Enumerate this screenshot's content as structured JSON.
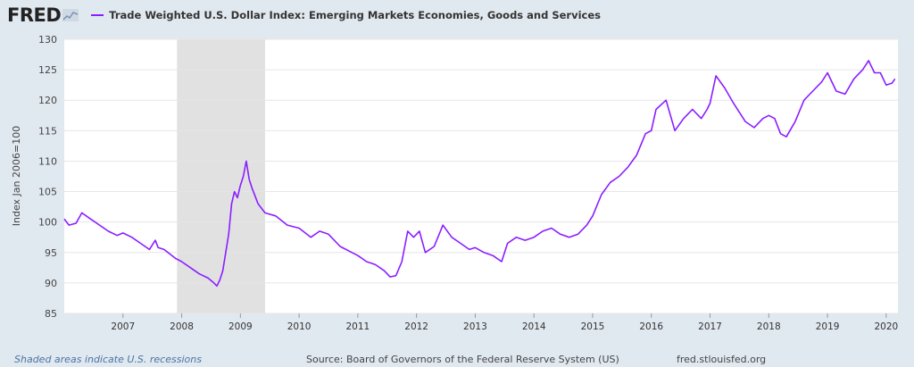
{
  "header": {
    "logo_text": "FRED",
    "logo_icon": "line-chart-icon"
  },
  "colors": {
    "series": "#8b1eff",
    "recession": "#e1e1e1",
    "plot_bg": "#ffffff",
    "page_bg": "#e1e9f0",
    "grid": "#e6e6e6"
  },
  "footer": {
    "recession_note": "Shaded areas indicate U.S. recessions",
    "source": "Source: Board of Governors of the Federal Reserve System (US)",
    "site": "fred.stlouisfed.org"
  },
  "chart_data": {
    "type": "line",
    "title": "",
    "ylabel": "Index Jan 2006=100",
    "xlabel": "",
    "ylim": [
      85,
      130
    ],
    "xlim": [
      2006.0,
      2020.2
    ],
    "yticks": [
      "85",
      "90",
      "95",
      "100",
      "105",
      "110",
      "115",
      "120",
      "125",
      "130"
    ],
    "xticks": [
      "2007",
      "2008",
      "2009",
      "2010",
      "2011",
      "2012",
      "2013",
      "2014",
      "2015",
      "2016",
      "2017",
      "2018",
      "2019",
      "2020"
    ],
    "grid": "horizontal",
    "recessions": [
      [
        2007.92,
        2009.42
      ]
    ],
    "series": [
      {
        "name": "Trade Weighted U.S. Dollar Index: Emerging Markets Economies, Goods and Services",
        "x": [
          2006.0,
          2006.08,
          2006.2,
          2006.3,
          2006.45,
          2006.6,
          2006.75,
          2006.9,
          2007.0,
          2007.15,
          2007.3,
          2007.45,
          2007.55,
          2007.6,
          2007.7,
          2007.9,
          2008.0,
          2008.15,
          2008.3,
          2008.45,
          2008.55,
          2008.6,
          2008.65,
          2008.7,
          2008.75,
          2008.8,
          2008.85,
          2008.9,
          2008.95,
          2009.0,
          2009.05,
          2009.1,
          2009.15,
          2009.2,
          2009.3,
          2009.42,
          2009.6,
          2009.8,
          2010.0,
          2010.2,
          2010.35,
          2010.5,
          2010.7,
          2010.9,
          2011.0,
          2011.15,
          2011.3,
          2011.45,
          2011.55,
          2011.65,
          2011.75,
          2011.85,
          2011.95,
          2012.05,
          2012.15,
          2012.3,
          2012.45,
          2012.6,
          2012.75,
          2012.9,
          2013.0,
          2013.15,
          2013.3,
          2013.45,
          2013.55,
          2013.7,
          2013.85,
          2014.0,
          2014.15,
          2014.3,
          2014.45,
          2014.6,
          2014.75,
          2014.9,
          2015.0,
          2015.15,
          2015.3,
          2015.45,
          2015.6,
          2015.75,
          2015.9,
          2016.0,
          2016.08,
          2016.25,
          2016.4,
          2016.55,
          2016.7,
          2016.85,
          2016.95,
          2017.0,
          2017.1,
          2017.25,
          2017.4,
          2017.6,
          2017.75,
          2017.9,
          2018.0,
          2018.1,
          2018.2,
          2018.3,
          2018.45,
          2018.6,
          2018.75,
          2018.9,
          2019.0,
          2019.15,
          2019.3,
          2019.45,
          2019.6,
          2019.7,
          2019.8,
          2019.9,
          2020.0,
          2020.1,
          2020.15
        ],
        "y": [
          100.5,
          99.5,
          99.8,
          101.5,
          100.5,
          99.5,
          98.5,
          97.8,
          98.2,
          97.5,
          96.5,
          95.5,
          97.0,
          95.8,
          95.5,
          94.0,
          93.5,
          92.5,
          91.5,
          90.8,
          90.0,
          89.5,
          90.5,
          92.0,
          95.0,
          98.0,
          103.0,
          105.0,
          104.0,
          106.0,
          107.5,
          110.0,
          107.0,
          105.5,
          103.0,
          101.5,
          101.0,
          99.5,
          99.0,
          97.5,
          98.5,
          98.0,
          96.0,
          95.0,
          94.5,
          93.5,
          93.0,
          92.0,
          91.0,
          91.2,
          93.5,
          98.5,
          97.5,
          98.5,
          95.0,
          96.0,
          99.5,
          97.5,
          96.5,
          95.5,
          95.8,
          95.0,
          94.5,
          93.5,
          96.5,
          97.5,
          97.0,
          97.5,
          98.5,
          99.0,
          98.0,
          97.5,
          98.0,
          99.5,
          101.0,
          104.5,
          106.5,
          107.5,
          109.0,
          111.0,
          114.5,
          115.0,
          118.5,
          120.0,
          115.0,
          117.0,
          118.5,
          117.0,
          118.5,
          119.5,
          124.0,
          122.0,
          119.5,
          116.5,
          115.5,
          117.0,
          117.5,
          117.0,
          114.5,
          114.0,
          116.5,
          120.0,
          121.5,
          123.0,
          124.5,
          121.5,
          121.0,
          123.5,
          125.0,
          126.5,
          124.5,
          124.5,
          122.5,
          122.8,
          123.5
        ]
      }
    ]
  }
}
